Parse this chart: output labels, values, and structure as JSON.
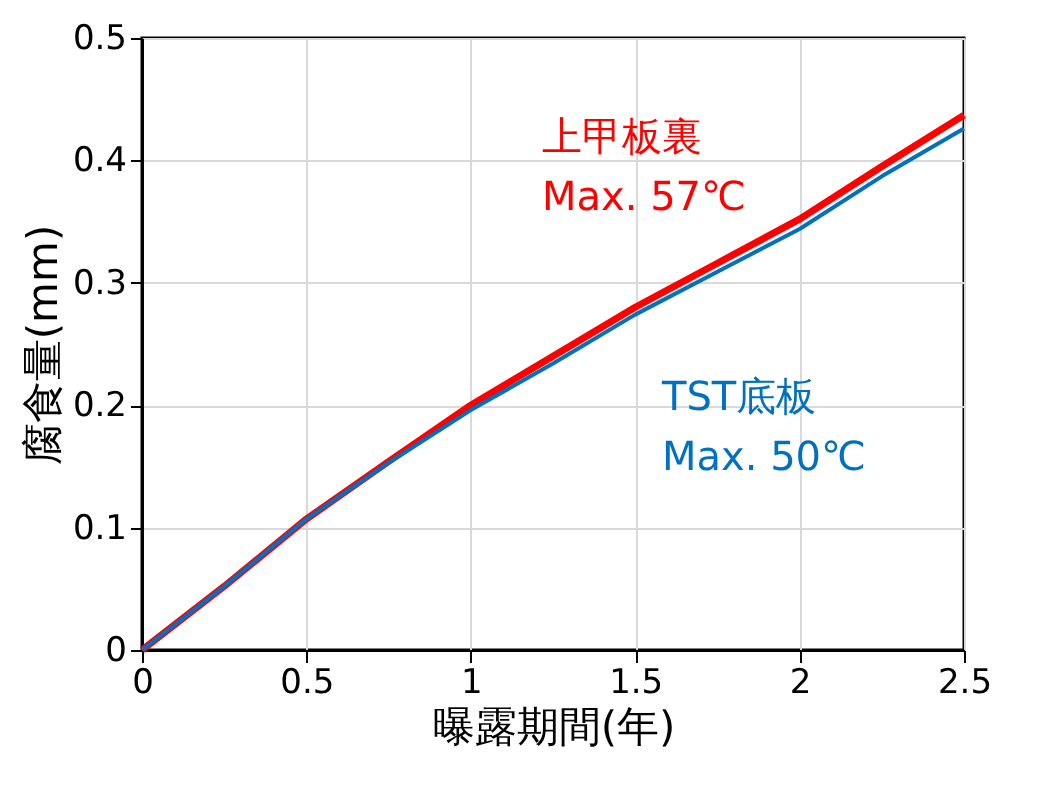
{
  "chart_data": {
    "type": "line",
    "xlabel": "曝露期間(年)",
    "ylabel": "腐食量(mm)",
    "x": [
      0,
      0.25,
      0.5,
      0.75,
      1,
      1.25,
      1.5,
      1.75,
      2,
      2.25,
      2.5
    ],
    "series": [
      {
        "name": "上甲板裏\nMax. 57℃",
        "color": "#ff0000",
        "values": [
          0,
          0.052,
          0.107,
          0.154,
          0.2,
          0.24,
          0.28,
          0.316,
          0.352,
          0.395,
          0.437
        ]
      },
      {
        "name": "TST底板\nMax. 50℃",
        "color": "#0070c0",
        "values": [
          0,
          0.052,
          0.107,
          0.153,
          0.196,
          0.234,
          0.274,
          0.309,
          0.344,
          0.387,
          0.426
        ]
      }
    ],
    "xlim": [
      0,
      2.5
    ],
    "xticks": [
      0,
      0.5,
      1,
      1.5,
      2,
      2.5
    ],
    "ylim": [
      0,
      0.5
    ],
    "yticks": [
      0,
      0.1,
      0.2,
      0.3,
      0.4,
      0.5
    ],
    "grid": true,
    "marker": "none",
    "line_style": "solid"
  }
}
